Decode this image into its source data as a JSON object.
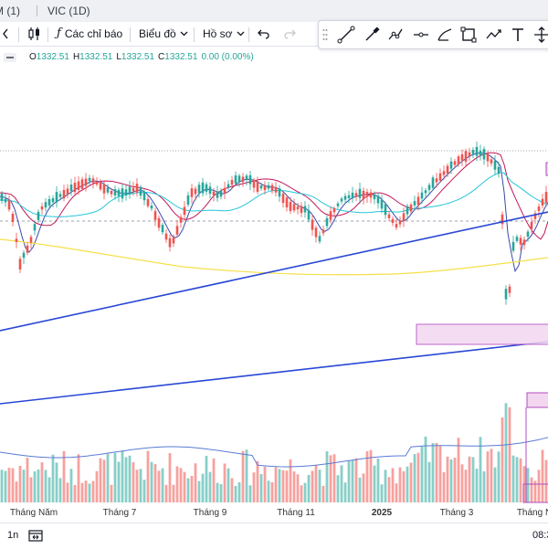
{
  "tabs": [
    {
      "label": "M (1)"
    },
    {
      "label": "VIC (1D)"
    }
  ],
  "toolbar": {
    "indicators_label": "Các chỉ báo",
    "chart_type_label": "Biểu đồ",
    "profile_label": "Hồ sơ"
  },
  "drawing_tools": [
    "trend-line-icon",
    "brush-icon",
    "path-icon",
    "horizontal-ray-icon",
    "shape-icon",
    "rectangle-icon",
    "projection-icon",
    "text-icon",
    "crosshair-move-icon"
  ],
  "legend": {
    "o_label": "O",
    "o_value": "1332.51",
    "h_label": "H",
    "h_value": "1332.51",
    "l_label": "L",
    "l_value": "1332.51",
    "c_label": "C",
    "c_value": "1332.51",
    "change": "0.00 (0.00%)"
  },
  "x_axis": [
    "Tháng Năm",
    "Tháng 7",
    "Tháng 9",
    "Tháng 11",
    "2025",
    "Tháng 3",
    "Tháng N"
  ],
  "bottom": {
    "range_label": "1n",
    "time_label": "08:3"
  },
  "colors": {
    "up": "#26a69a",
    "down": "#ef5350",
    "trendline": "#2947d6",
    "ma_pink": "#c2185b",
    "ma_blue": "#3949ab",
    "ma_teal": "#26c6da",
    "ma_yellow": "#f5e04a",
    "zone_fill": "#f3d6f0",
    "zone_border": "#b04cc0"
  }
}
